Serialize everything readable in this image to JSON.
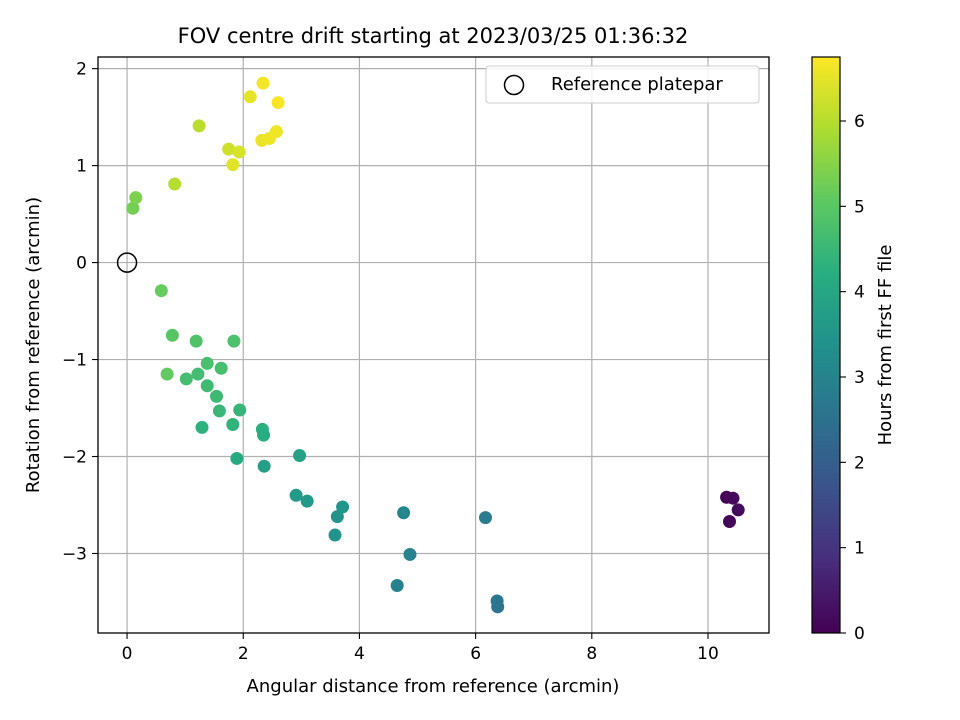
{
  "chart_data": {
    "type": "scatter",
    "title": "FOV centre drift starting at 2023/03/25 01:36:32",
    "xlabel": "Angular distance from reference (arcmin)",
    "ylabel": "Rotation from reference (arcmin)",
    "xlim": [
      -0.5,
      11.05
    ],
    "ylim": [
      -3.82,
      2.12
    ],
    "xticks": [
      0,
      2,
      4,
      6,
      8,
      10
    ],
    "yticks": [
      -3,
      -2,
      -1,
      0,
      1,
      2
    ],
    "xtick_labels": [
      "0",
      "2",
      "4",
      "6",
      "8",
      "10"
    ],
    "ytick_labels": [
      "−3",
      "−2",
      "−1",
      "0",
      "1",
      "2"
    ],
    "grid": true,
    "legend": {
      "position": "top-right",
      "entries": [
        "Reference platepar"
      ]
    },
    "colormap": "viridis",
    "colorbar": {
      "label": "Hours from first FF file",
      "range": [
        0,
        6.75
      ],
      "ticks": [
        0,
        1,
        2,
        3,
        4,
        5,
        6
      ],
      "tick_labels": [
        "0",
        "1",
        "2",
        "3",
        "4",
        "5",
        "6"
      ]
    },
    "reference_point": {
      "x": 0,
      "y": 0,
      "label": "Reference platepar"
    },
    "points": [
      {
        "x": 10.32,
        "y": -2.42,
        "c": 0.05
      },
      {
        "x": 10.43,
        "y": -2.43,
        "c": 0.15
      },
      {
        "x": 10.37,
        "y": -2.67,
        "c": 0.1
      },
      {
        "x": 10.52,
        "y": -2.55,
        "c": 0.2
      },
      {
        "x": 6.38,
        "y": -3.55,
        "c": 2.6
      },
      {
        "x": 6.37,
        "y": -3.49,
        "c": 2.65
      },
      {
        "x": 6.17,
        "y": -2.63,
        "c": 2.8
      },
      {
        "x": 4.65,
        "y": -3.33,
        "c": 2.9
      },
      {
        "x": 4.87,
        "y": -3.01,
        "c": 3.0
      },
      {
        "x": 4.76,
        "y": -2.58,
        "c": 3.05
      },
      {
        "x": 3.58,
        "y": -2.81,
        "c": 3.4
      },
      {
        "x": 3.62,
        "y": -2.62,
        "c": 3.45
      },
      {
        "x": 3.71,
        "y": -2.52,
        "c": 3.5
      },
      {
        "x": 3.1,
        "y": -2.46,
        "c": 3.6
      },
      {
        "x": 2.91,
        "y": -2.4,
        "c": 3.65
      },
      {
        "x": 2.36,
        "y": -2.1,
        "c": 3.8
      },
      {
        "x": 2.97,
        "y": -1.99,
        "c": 3.85
      },
      {
        "x": 1.89,
        "y": -2.02,
        "c": 4.1
      },
      {
        "x": 1.29,
        "y": -1.7,
        "c": 4.3
      },
      {
        "x": 1.82,
        "y": -1.67,
        "c": 4.35
      },
      {
        "x": 2.33,
        "y": -1.72,
        "c": 4.25
      },
      {
        "x": 2.35,
        "y": -1.78,
        "c": 4.2
      },
      {
        "x": 1.59,
        "y": -1.53,
        "c": 4.5
      },
      {
        "x": 1.94,
        "y": -1.52,
        "c": 4.45
      },
      {
        "x": 1.54,
        "y": -1.38,
        "c": 4.55
      },
      {
        "x": 1.38,
        "y": -1.27,
        "c": 4.6
      },
      {
        "x": 1.22,
        "y": -1.15,
        "c": 4.65
      },
      {
        "x": 1.02,
        "y": -1.2,
        "c": 4.7
      },
      {
        "x": 0.69,
        "y": -1.15,
        "c": 5.1
      },
      {
        "x": 1.38,
        "y": -1.04,
        "c": 4.75
      },
      {
        "x": 1.62,
        "y": -1.09,
        "c": 4.7
      },
      {
        "x": 1.19,
        "y": -0.81,
        "c": 4.85
      },
      {
        "x": 1.84,
        "y": -0.81,
        "c": 4.8
      },
      {
        "x": 0.78,
        "y": -0.75,
        "c": 4.95
      },
      {
        "x": 0.59,
        "y": -0.29,
        "c": 5.15
      },
      {
        "x": 0.1,
        "y": 0.56,
        "c": 5.3
      },
      {
        "x": 0.15,
        "y": 0.67,
        "c": 5.4
      },
      {
        "x": 0.82,
        "y": 0.81,
        "c": 6.0
      },
      {
        "x": 1.24,
        "y": 1.41,
        "c": 6.05
      },
      {
        "x": 1.75,
        "y": 1.17,
        "c": 6.25
      },
      {
        "x": 1.93,
        "y": 1.14,
        "c": 6.35
      },
      {
        "x": 1.82,
        "y": 1.01,
        "c": 6.45
      },
      {
        "x": 2.32,
        "y": 1.26,
        "c": 6.55
      },
      {
        "x": 2.45,
        "y": 1.28,
        "c": 6.6
      },
      {
        "x": 2.57,
        "y": 1.35,
        "c": 6.62
      },
      {
        "x": 2.12,
        "y": 1.71,
        "c": 6.5
      },
      {
        "x": 2.34,
        "y": 1.85,
        "c": 6.65
      },
      {
        "x": 2.6,
        "y": 1.65,
        "c": 6.7
      }
    ]
  }
}
